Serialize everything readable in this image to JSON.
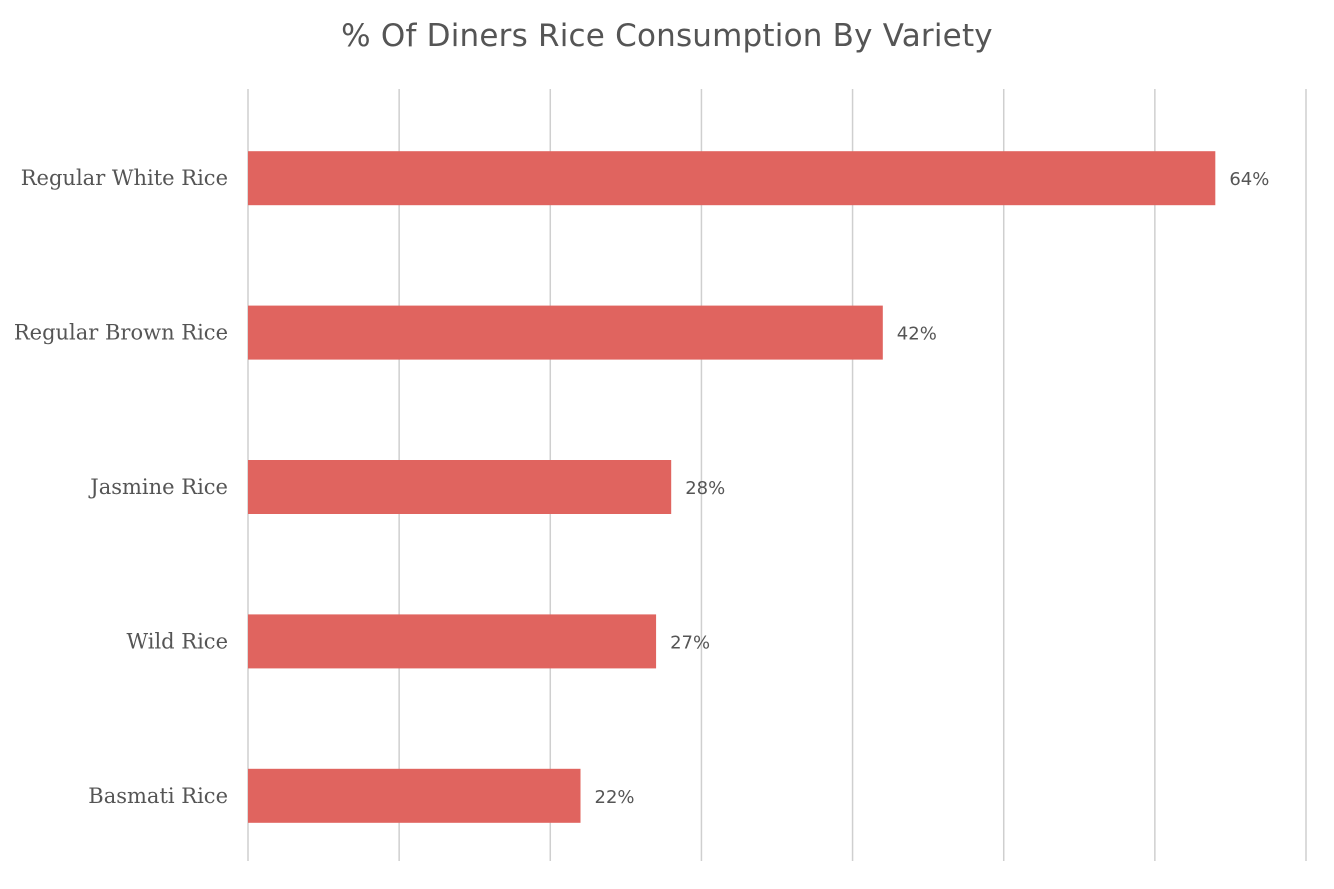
{
  "chart_data": {
    "type": "bar",
    "orientation": "horizontal",
    "title": "% Of Diners Rice Consumption By Variety",
    "categories": [
      "Regular White Rice",
      "Regular Brown Rice",
      "Jasmine Rice",
      "Wild Rice",
      "Basmati Rice"
    ],
    "values": [
      64,
      42,
      28,
      27,
      22
    ],
    "data_labels": [
      "64%",
      "42%",
      "28%",
      "27%",
      "22%"
    ],
    "xlim": [
      0,
      70
    ],
    "x_ticks_visible": false,
    "grid": "vertical",
    "legend": "none",
    "bar_color": "#e0645f",
    "grid_color": "#cfcfcf",
    "text_color": "#555555"
  }
}
